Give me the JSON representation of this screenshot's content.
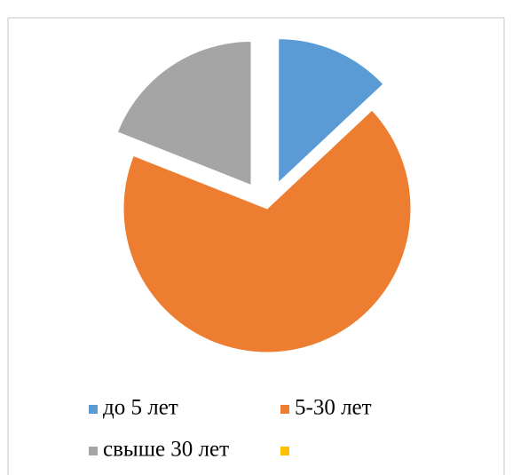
{
  "chart_data": {
    "type": "pie",
    "categories": [
      "до 5 лет",
      "5-30 лет",
      "свыше 30 лет",
      null
    ],
    "values": [
      13,
      68,
      19,
      0
    ],
    "colors": [
      "#5b9bd5",
      "#ed7d31",
      "#a5a5a5",
      "#ffc000"
    ],
    "exploded": [
      true,
      false,
      true,
      false
    ],
    "legend": "bottom"
  }
}
